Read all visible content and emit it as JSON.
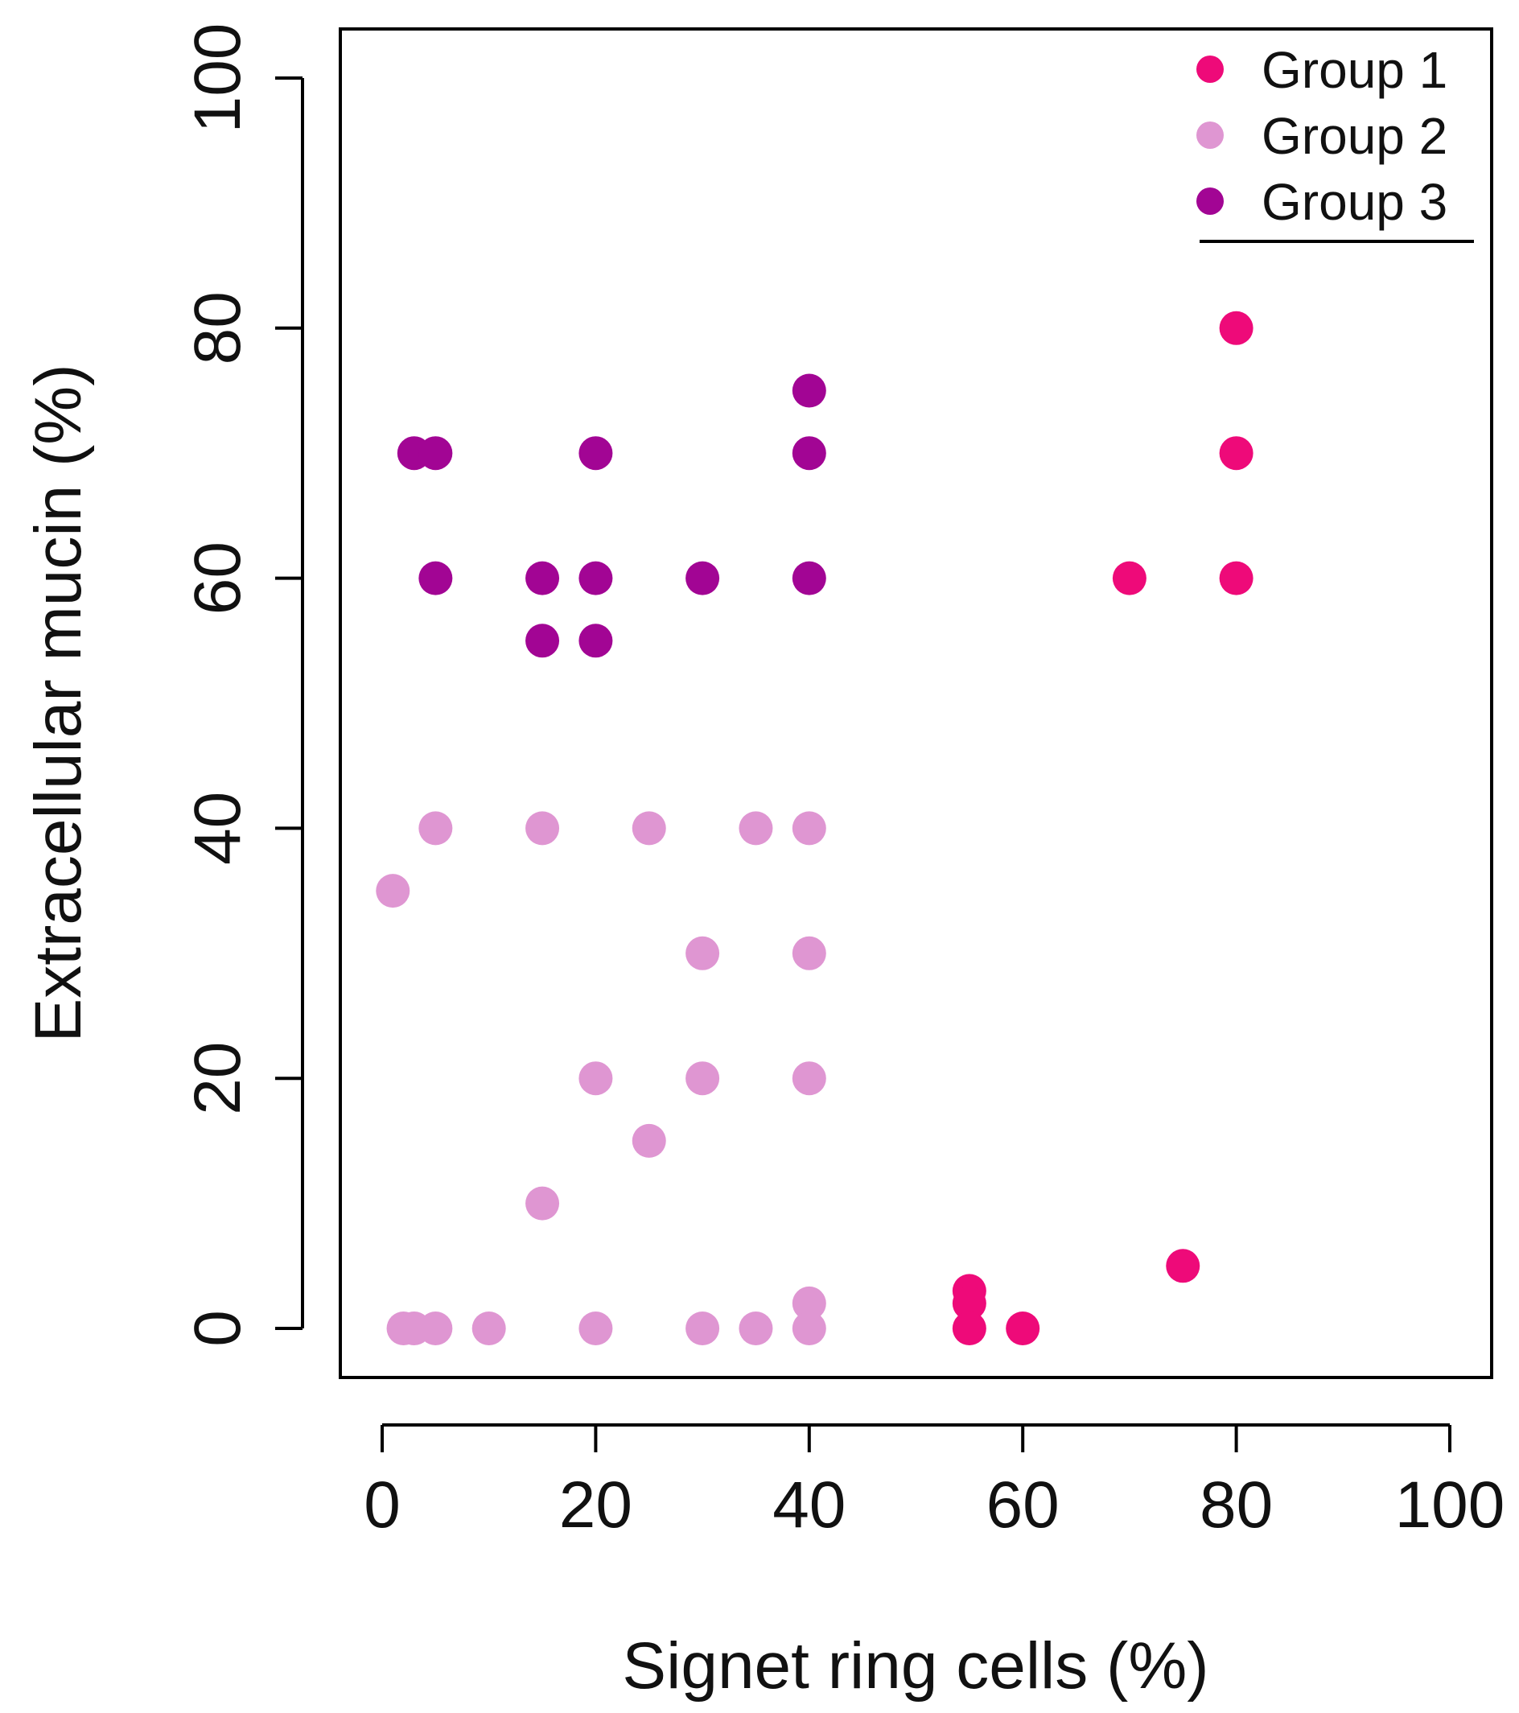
{
  "chart_data": {
    "type": "scatter",
    "title": "",
    "xlabel": "Signet ring cells (%)",
    "ylabel": "Extracellular mucin (%)",
    "xlim": [
      -2,
      104
    ],
    "ylim": [
      -4,
      104
    ],
    "xticks": [
      0,
      20,
      40,
      60,
      80,
      100
    ],
    "yticks": [
      0,
      20,
      40,
      60,
      80,
      100
    ],
    "grid": false,
    "legend_position": "top-right",
    "series": [
      {
        "name": "Group 1",
        "color": "#ee0a79",
        "points": [
          [
            80,
            80
          ],
          [
            80,
            70
          ],
          [
            70,
            60
          ],
          [
            80,
            60
          ],
          [
            75,
            5
          ],
          [
            55,
            3
          ],
          [
            55,
            2
          ],
          [
            55,
            0
          ],
          [
            60,
            0
          ]
        ]
      },
      {
        "name": "Group 2",
        "color": "#df96d2",
        "points": [
          [
            5,
            40
          ],
          [
            15,
            40
          ],
          [
            25,
            40
          ],
          [
            35,
            40
          ],
          [
            40,
            40
          ],
          [
            1,
            35
          ],
          [
            30,
            30
          ],
          [
            40,
            30
          ],
          [
            20,
            20
          ],
          [
            30,
            20
          ],
          [
            40,
            20
          ],
          [
            25,
            15
          ],
          [
            15,
            10
          ],
          [
            40,
            2
          ],
          [
            2,
            0
          ],
          [
            3,
            0
          ],
          [
            5,
            0
          ],
          [
            10,
            0
          ],
          [
            20,
            0
          ],
          [
            30,
            0
          ],
          [
            35,
            0
          ],
          [
            40,
            0
          ]
        ]
      },
      {
        "name": "Group 3",
        "color": "#a20594",
        "points": [
          [
            40,
            75
          ],
          [
            3,
            70
          ],
          [
            5,
            70
          ],
          [
            20,
            70
          ],
          [
            40,
            70
          ],
          [
            5,
            60
          ],
          [
            15,
            60
          ],
          [
            20,
            60
          ],
          [
            30,
            60
          ],
          [
            40,
            60
          ],
          [
            15,
            55
          ],
          [
            20,
            55
          ]
        ]
      }
    ]
  }
}
